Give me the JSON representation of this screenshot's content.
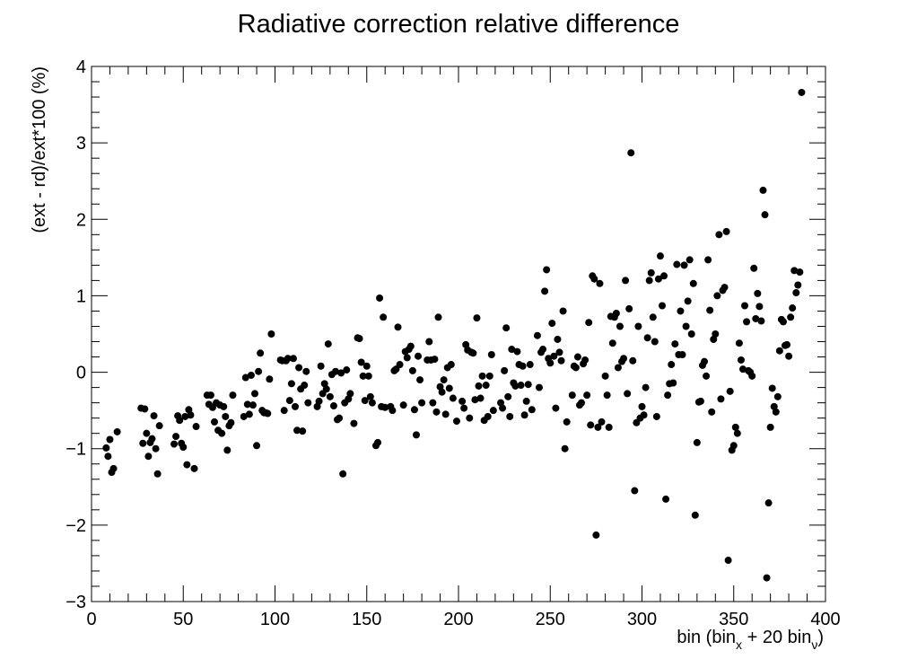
{
  "chart_data": {
    "type": "scatter",
    "title": "Radiative correction relative difference",
    "xlabel": {
      "prefix": "bin (bin",
      "sub1": "x",
      "middle": " + 20 bin",
      "sub2": "ν",
      "suffix": ")"
    },
    "ylabel": "(ext - rd)/ext*100 (%)",
    "xlim": [
      0,
      400
    ],
    "ylim": [
      -3,
      4
    ],
    "xticks": [
      0,
      50,
      100,
      150,
      200,
      250,
      300,
      350,
      400
    ],
    "xtick_labels": [
      "0",
      "50",
      "100",
      "150",
      "200",
      "250",
      "300",
      "350",
      "400"
    ],
    "yticks": [
      -3,
      -2,
      -1,
      0,
      1,
      2,
      3,
      4
    ],
    "ytick_labels": [
      "−3",
      "−2",
      "−1",
      "0",
      "1",
      "2",
      "3",
      "4"
    ],
    "grid": false,
    "marker_color": "#000000",
    "points": [
      [
        8,
        -0.99
      ],
      [
        9,
        -1.1
      ],
      [
        10,
        -0.88
      ],
      [
        11,
        -1.31
      ],
      [
        12,
        -1.26
      ],
      [
        14,
        -0.78
      ],
      [
        27,
        -0.47
      ],
      [
        28,
        -0.93
      ],
      [
        29,
        -0.48
      ],
      [
        30,
        -0.8
      ],
      [
        31,
        -1.1
      ],
      [
        32,
        -0.92
      ],
      [
        33,
        -0.87
      ],
      [
        34,
        -0.57
      ],
      [
        35,
        -1.0
      ],
      [
        36,
        -1.33
      ],
      [
        37,
        -0.7
      ],
      [
        45,
        -0.94
      ],
      [
        46,
        -0.84
      ],
      [
        47,
        -0.57
      ],
      [
        48,
        -0.63
      ],
      [
        49,
        -0.93
      ],
      [
        50,
        -0.98
      ],
      [
        51,
        -0.58
      ],
      [
        52,
        -1.21
      ],
      [
        53,
        -0.49
      ],
      [
        54,
        -0.56
      ],
      [
        56,
        -1.26
      ],
      [
        57,
        -0.71
      ],
      [
        63,
        -0.3
      ],
      [
        64,
        -0.42
      ],
      [
        65,
        -0.3
      ],
      [
        66,
        -0.46
      ],
      [
        67,
        -0.65
      ],
      [
        68,
        -0.4
      ],
      [
        69,
        -0.76
      ],
      [
        70,
        -0.43
      ],
      [
        71,
        -0.8
      ],
      [
        72,
        -0.45
      ],
      [
        73,
        -0.58
      ],
      [
        74,
        -1.02
      ],
      [
        75,
        -0.7
      ],
      [
        76,
        -0.66
      ],
      [
        77,
        -0.3
      ],
      [
        83,
        -0.58
      ],
      [
        84,
        -0.07
      ],
      [
        85,
        -0.42
      ],
      [
        86,
        -0.55
      ],
      [
        87,
        -0.04
      ],
      [
        88,
        -0.43
      ],
      [
        89,
        -0.28
      ],
      [
        90,
        -0.96
      ],
      [
        91,
        0.01
      ],
      [
        92,
        0.25
      ],
      [
        93,
        -0.5
      ],
      [
        94,
        -0.53
      ],
      [
        95,
        -0.53
      ],
      [
        96,
        -0.54
      ],
      [
        97,
        -0.09
      ],
      [
        98,
        0.5
      ],
      [
        103,
        0.16
      ],
      [
        104,
        0.15
      ],
      [
        105,
        -0.5
      ],
      [
        106,
        0.15
      ],
      [
        107,
        0.18
      ],
      [
        108,
        -0.37
      ],
      [
        109,
        -0.15
      ],
      [
        110,
        0.18
      ],
      [
        111,
        -0.45
      ],
      [
        112,
        -0.76
      ],
      [
        113,
        0.06
      ],
      [
        114,
        -0.22
      ],
      [
        115,
        -0.77
      ],
      [
        116,
        -0.17
      ],
      [
        117,
        0.01
      ],
      [
        118,
        -0.4
      ],
      [
        123,
        -0.45
      ],
      [
        124,
        -0.38
      ],
      [
        125,
        0.08
      ],
      [
        126,
        -0.28
      ],
      [
        127,
        -0.15
      ],
      [
        128,
        -0.22
      ],
      [
        129,
        0.37
      ],
      [
        130,
        -0.32
      ],
      [
        131,
        -0.03
      ],
      [
        132,
        -0.44
      ],
      [
        133,
        0.01
      ],
      [
        134,
        -0.62
      ],
      [
        135,
        -0.6
      ],
      [
        136,
        -0.01
      ],
      [
        137,
        -1.33
      ],
      [
        138,
        -0.4
      ],
      [
        139,
        0.03
      ],
      [
        140,
        -0.35
      ],
      [
        141,
        -0.28
      ],
      [
        143,
        -0.67
      ],
      [
        145,
        0.45
      ],
      [
        146,
        0.44
      ],
      [
        147,
        0.13
      ],
      [
        148,
        -0.05
      ],
      [
        149,
        -0.37
      ],
      [
        150,
        0.08
      ],
      [
        151,
        -0.05
      ],
      [
        152,
        -0.32
      ],
      [
        153,
        -0.4
      ],
      [
        155,
        -0.96
      ],
      [
        156,
        -0.92
      ],
      [
        157,
        0.97
      ],
      [
        158,
        -0.45
      ],
      [
        159,
        0.72
      ],
      [
        160,
        -0.46
      ],
      [
        163,
        -0.45
      ],
      [
        164,
        -0.5
      ],
      [
        165,
        0.02
      ],
      [
        166,
        0.04
      ],
      [
        167,
        0.59
      ],
      [
        168,
        0.1
      ],
      [
        170,
        -0.43
      ],
      [
        171,
        0.27
      ],
      [
        172,
        0.19
      ],
      [
        173,
        0.3
      ],
      [
        174,
        0.34
      ],
      [
        175,
        0.02
      ],
      [
        176,
        -0.49
      ],
      [
        177,
        -0.82
      ],
      [
        178,
        0.21
      ],
      [
        179,
        -0.1
      ],
      [
        180,
        -0.4
      ],
      [
        183,
        0.16
      ],
      [
        184,
        0.4
      ],
      [
        185,
        0.16
      ],
      [
        186,
        -0.4
      ],
      [
        187,
        0.17
      ],
      [
        188,
        -0.52
      ],
      [
        189,
        0.72
      ],
      [
        190,
        -0.19
      ],
      [
        191,
        -0.26
      ],
      [
        192,
        -0.1
      ],
      [
        193,
        -0.55
      ],
      [
        194,
        0.06
      ],
      [
        195,
        -0.21
      ],
      [
        196,
        0.1
      ],
      [
        197,
        -0.34
      ],
      [
        199,
        -0.64
      ],
      [
        202,
        -0.38
      ],
      [
        203,
        -0.47
      ],
      [
        204,
        0.36
      ],
      [
        205,
        0.29
      ],
      [
        206,
        -0.6
      ],
      [
        207,
        0.26
      ],
      [
        208,
        0.25
      ],
      [
        209,
        -0.36
      ],
      [
        210,
        0.71
      ],
      [
        211,
        -0.18
      ],
      [
        212,
        -0.34
      ],
      [
        213,
        -0.05
      ],
      [
        214,
        -0.63
      ],
      [
        215,
        -0.17
      ],
      [
        216,
        -0.58
      ],
      [
        217,
        -0.05
      ],
      [
        218,
        0.23
      ],
      [
        219,
        -0.5
      ],
      [
        223,
        -0.4
      ],
      [
        224,
        -0.47
      ],
      [
        225,
        0.02
      ],
      [
        226,
        0.58
      ],
      [
        227,
        -0.32
      ],
      [
        228,
        -0.58
      ],
      [
        229,
        0.3
      ],
      [
        230,
        -0.14
      ],
      [
        231,
        -0.18
      ],
      [
        232,
        0.27
      ],
      [
        233,
        0.1
      ],
      [
        234,
        -0.17
      ],
      [
        235,
        0.08
      ],
      [
        236,
        -0.56
      ],
      [
        237,
        -0.38
      ],
      [
        238,
        -0.16
      ],
      [
        239,
        0.1
      ],
      [
        240,
        -0.49
      ],
      [
        243,
        0.48
      ],
      [
        244,
        -0.2
      ],
      [
        245,
        0.26
      ],
      [
        246,
        0.3
      ],
      [
        247,
        1.06
      ],
      [
        248,
        1.34
      ],
      [
        249,
        0.18
      ],
      [
        250,
        0.12
      ],
      [
        251,
        0.64
      ],
      [
        252,
        0.21
      ],
      [
        253,
        -0.47
      ],
      [
        254,
        0.43
      ],
      [
        255,
        0.26
      ],
      [
        256,
        0.15
      ],
      [
        257,
        0.8
      ],
      [
        258,
        -1.0
      ],
      [
        259,
        -0.65
      ],
      [
        262,
        -0.3
      ],
      [
        263,
        0.08
      ],
      [
        264,
        0.06
      ],
      [
        265,
        0.2
      ],
      [
        266,
        -0.43
      ],
      [
        267,
        -0.4
      ],
      [
        268,
        0.11
      ],
      [
        269,
        0.16
      ],
      [
        270,
        -0.3
      ],
      [
        271,
        0.65
      ],
      [
        272,
        -0.69
      ],
      [
        273,
        1.26
      ],
      [
        274,
        1.22
      ],
      [
        275,
        -2.13
      ],
      [
        276,
        -0.72
      ],
      [
        277,
        1.16
      ],
      [
        278,
        -0.65
      ],
      [
        280,
        -0.05
      ],
      [
        281,
        -0.3
      ],
      [
        282,
        -0.72
      ],
      [
        283,
        0.73
      ],
      [
        284,
        0.38
      ],
      [
        285,
        0.72
      ],
      [
        286,
        0.77
      ],
      [
        287,
        0.06
      ],
      [
        288,
        0.6
      ],
      [
        289,
        0.14
      ],
      [
        290,
        0.18
      ],
      [
        291,
        1.2
      ],
      [
        292,
        -0.28
      ],
      [
        293,
        0.83
      ],
      [
        294,
        2.87
      ],
      [
        295,
        0.15
      ],
      [
        296,
        -1.55
      ],
      [
        297,
        -0.66
      ],
      [
        298,
        0.6
      ],
      [
        299,
        -0.6
      ],
      [
        300,
        -0.45
      ],
      [
        301,
        -0.56
      ],
      [
        302,
        -0.2
      ],
      [
        303,
        0.45
      ],
      [
        304,
        1.2
      ],
      [
        305,
        1.3
      ],
      [
        306,
        0.72
      ],
      [
        307,
        0.4
      ],
      [
        308,
        -0.58
      ],
      [
        309,
        1.22
      ],
      [
        310,
        1.52
      ],
      [
        311,
        0.87
      ],
      [
        312,
        1.26
      ],
      [
        313,
        -1.66
      ],
      [
        314,
        -0.3
      ],
      [
        315,
        -0.15
      ],
      [
        316,
        0.1
      ],
      [
        317,
        -0.14
      ],
      [
        318,
        0.37
      ],
      [
        319,
        1.41
      ],
      [
        320,
        0.23
      ],
      [
        321,
        0.8
      ],
      [
        322,
        0.23
      ],
      [
        323,
        1.4
      ],
      [
        324,
        0.6
      ],
      [
        325,
        0.93
      ],
      [
        326,
        1.47
      ],
      [
        327,
        0.5
      ],
      [
        328,
        1.16
      ],
      [
        329,
        -1.87
      ],
      [
        330,
        -0.92
      ],
      [
        331,
        -0.39
      ],
      [
        332,
        -0.38
      ],
      [
        333,
        0.09
      ],
      [
        334,
        0.14
      ],
      [
        335,
        -0.05
      ],
      [
        336,
        1.47
      ],
      [
        337,
        0.81
      ],
      [
        338,
        -0.52
      ],
      [
        339,
        0.43
      ],
      [
        340,
        0.5
      ],
      [
        341,
        1.0
      ],
      [
        342,
        1.8
      ],
      [
        343,
        -0.35
      ],
      [
        344,
        1.07
      ],
      [
        345,
        1.11
      ],
      [
        346,
        1.84
      ],
      [
        347,
        -2.46
      ],
      [
        348,
        -0.25
      ],
      [
        349,
        -1.02
      ],
      [
        350,
        -0.96
      ],
      [
        351,
        -0.72
      ],
      [
        352,
        -0.8
      ],
      [
        353,
        0.38
      ],
      [
        354,
        0.16
      ],
      [
        355,
        0.04
      ],
      [
        356,
        0.87
      ],
      [
        357,
        0.66
      ],
      [
        358,
        0.02
      ],
      [
        359,
        0.0
      ],
      [
        360,
        -0.05
      ],
      [
        361,
        1.36
      ],
      [
        362,
        0.7
      ],
      [
        363,
        1.03
      ],
      [
        364,
        0.86
      ],
      [
        365,
        0.67
      ],
      [
        366,
        2.38
      ],
      [
        367,
        2.06
      ],
      [
        368,
        -2.69
      ],
      [
        369,
        -1.71
      ],
      [
        370,
        -0.72
      ],
      [
        371,
        -0.21
      ],
      [
        372,
        -0.45
      ],
      [
        373,
        -0.52
      ],
      [
        374,
        -0.32
      ],
      [
        375,
        0.28
      ],
      [
        376,
        0.69
      ],
      [
        377,
        0.66
      ],
      [
        378,
        0.35
      ],
      [
        379,
        0.36
      ],
      [
        380,
        0.21
      ],
      [
        381,
        0.72
      ],
      [
        382,
        0.84
      ],
      [
        383,
        1.33
      ],
      [
        384,
        1.04
      ],
      [
        385,
        1.14
      ],
      [
        386,
        1.31
      ],
      [
        387,
        3.66
      ]
    ]
  }
}
